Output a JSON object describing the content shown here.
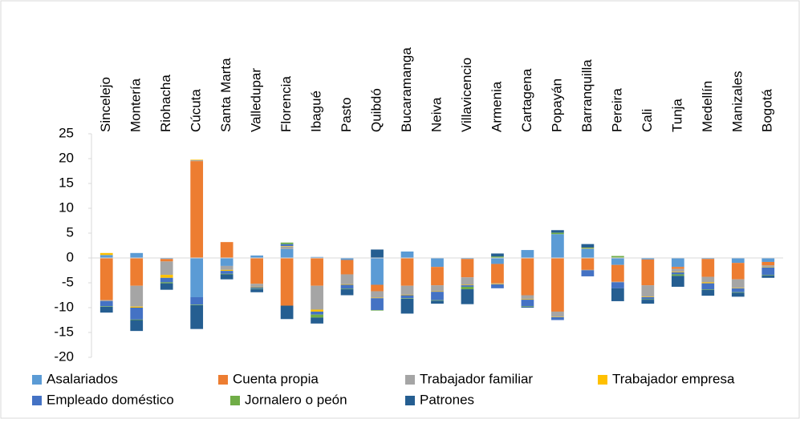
{
  "chart_data": {
    "type": "bar",
    "stacked": true,
    "categories": [
      "Sincelejo",
      "Montería",
      "Riohacha",
      "Cúcuta",
      "Santa Marta",
      "Valledupar",
      "Florencia",
      "Ibagué",
      "Pasto",
      "Quibdó",
      "Bucaramanga",
      "Neiva",
      "Villavicencio",
      "Armenia",
      "Cartagena",
      "Popayán",
      "Barranquilla",
      "Pereira",
      "Cali",
      "Tunja",
      "Medellín",
      "Manizales",
      "Bogotá"
    ],
    "series": [
      {
        "name": "Asalariados",
        "color": "#5b9bd5",
        "values": [
          0.6,
          1.0,
          -0.2,
          -7.9,
          -1.6,
          0.5,
          1.8,
          0.2,
          -0.4,
          -5.4,
          1.3,
          -1.8,
          -0.2,
          -1.2,
          1.6,
          4.8,
          1.9,
          -1.4,
          -0.3,
          -1.8,
          -0.2,
          -1.0,
          -0.8
        ]
      },
      {
        "name": "Cuenta propia",
        "color": "#ed7d31",
        "values": [
          -8.5,
          -5.6,
          -0.5,
          19.5,
          3.2,
          -5.2,
          -9.6,
          -5.6,
          -2.9,
          -1.3,
          -5.6,
          -3.7,
          -3.7,
          -3.9,
          -7.5,
          -10.8,
          -2.4,
          -3.4,
          -5.2,
          -0.4,
          -3.6,
          -3.3,
          -0.7
        ]
      },
      {
        "name": "Trabajador familiar",
        "color": "#a5a5a5",
        "values": [
          -0.2,
          -4.2,
          -2.7,
          0.2,
          -0.8,
          -0.6,
          0.5,
          -4.8,
          -2.0,
          -1.3,
          -1.8,
          -1.2,
          -1.5,
          -0.1,
          -0.8,
          -1.0,
          -0.1,
          -0.1,
          -2.3,
          -0.6,
          -1.1,
          -1.7,
          -0.3
        ]
      },
      {
        "name": "Trabajador empresa",
        "color": "#ffc000",
        "values": [
          0.4,
          -0.2,
          -0.6,
          0.1,
          -0.2,
          -0.1,
          0.1,
          -0.4,
          -0.1,
          -0.1,
          -0.1,
          -0.1,
          -0.1,
          -0.1,
          -0.1,
          -0.1,
          0.1,
          0.1,
          -0.1,
          -0.1,
          -0.2,
          -0.1,
          -0.1
        ]
      },
      {
        "name": "Empleado doméstico",
        "color": "#4472c4",
        "values": [
          -1.0,
          -2.4,
          -0.9,
          -1.5,
          -0.6,
          -0.3,
          0.4,
          -0.6,
          -0.8,
          -2.4,
          -0.6,
          -1.7,
          -0.3,
          -0.8,
          -1.3,
          -0.6,
          -1.2,
          -1.2,
          -0.4,
          -0.4,
          -1.2,
          -0.8,
          -1.5
        ]
      },
      {
        "name": "Jornalero o peón",
        "color": "#70ad47",
        "values": [
          -0.1,
          -0.1,
          -0.2,
          -0.1,
          -0.1,
          -0.1,
          0.3,
          -0.6,
          -0.1,
          -0.1,
          -0.1,
          -0.1,
          -0.5,
          0.3,
          -0.1,
          0.3,
          0.1,
          0.3,
          -0.1,
          -0.3,
          -0.1,
          -0.1,
          -0.1
        ]
      },
      {
        "name": "Patrones",
        "color": "#255e91",
        "values": [
          -1.2,
          -2.2,
          -1.3,
          -4.8,
          -1.0,
          -0.6,
          -2.7,
          -1.2,
          -1.2,
          1.7,
          -3.0,
          -0.6,
          -3.0,
          0.6,
          -0.2,
          0.5,
          0.7,
          -2.6,
          -0.8,
          -2.2,
          -1.2,
          -0.8,
          -0.5
        ]
      }
    ],
    "ylim": [
      -20,
      25
    ],
    "yticks": [
      -20,
      -15,
      -10,
      -5,
      0,
      5,
      10,
      15,
      20,
      25
    ]
  }
}
